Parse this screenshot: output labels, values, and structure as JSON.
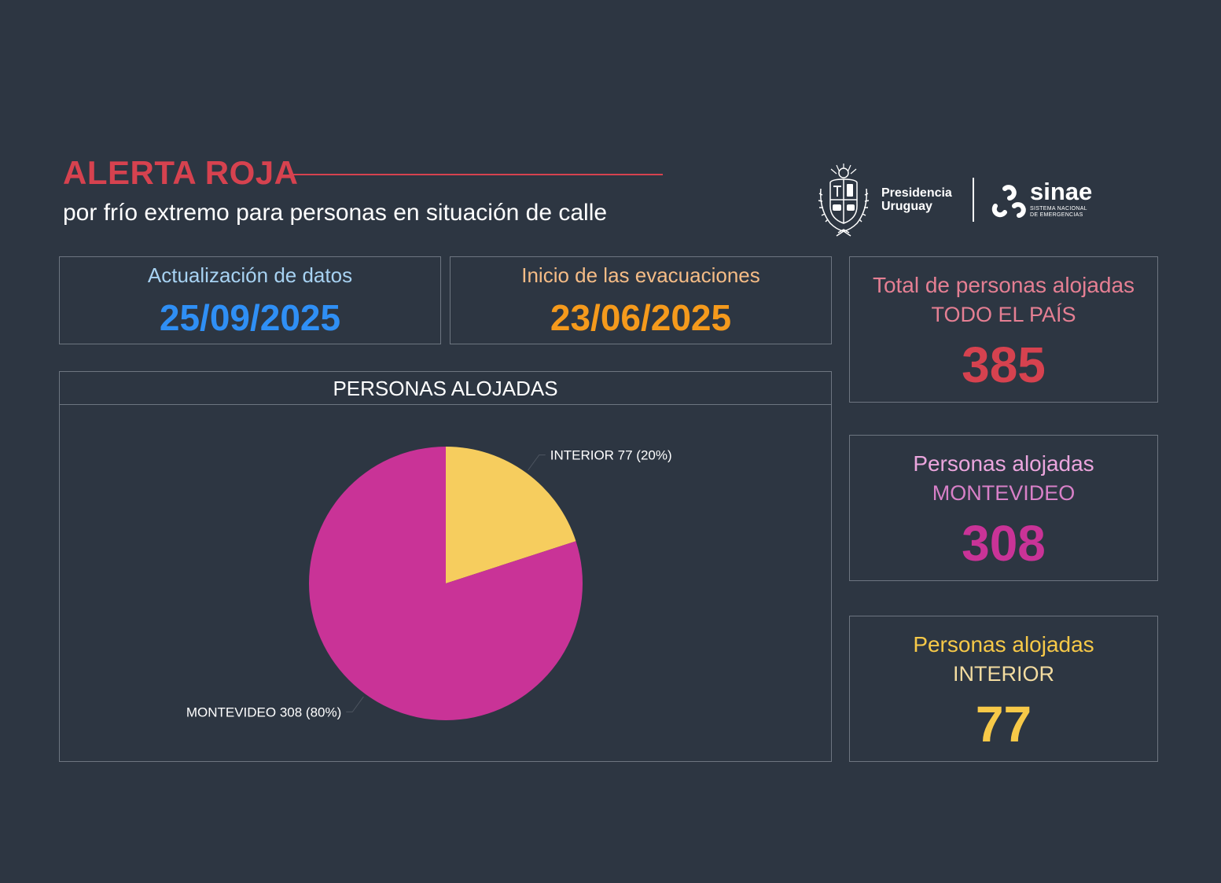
{
  "header": {
    "title": "ALERTA ROJA",
    "subtitle": "por frío extremo para personas en situación de calle"
  },
  "logos": {
    "presidencia_line1": "Presidencia",
    "presidencia_line2": "Uruguay",
    "sinae_word": "sinae",
    "sinae_sub_line1": "SISTEMA NACIONAL",
    "sinae_sub_line2": "DE EMERGENCIAS"
  },
  "dates": {
    "update_label": "Actualización de datos",
    "update_value": "25/09/2025",
    "start_label": "Inicio de las evacuaciones",
    "start_value": "23/06/2025"
  },
  "stats": {
    "total": {
      "label": "Total de personas alojadas",
      "sub": "TODO EL PAÍS",
      "value": "385"
    },
    "montevideo": {
      "label": "Personas alojadas",
      "sub": "MONTEVIDEO",
      "value": "308"
    },
    "interior": {
      "label": "Personas alojadas",
      "sub": "INTERIOR",
      "value": "77"
    }
  },
  "colors": {
    "background": "#2d3642",
    "alert_red": "#d6424f",
    "update_label": "#a7d2f2",
    "update_value": "#2f8ff5",
    "start_label": "#f5bc86",
    "start_value": "#f59a1c",
    "total_label": "#e57f93",
    "total_value": "#d6424f",
    "mvd_label": "#eba5dd",
    "mvd_sub": "#d880c8",
    "mvd_value": "#c93397",
    "int_label": "#f7c948",
    "int_sub": "#f3dca0",
    "int_value": "#f7c948",
    "pie_interior": "#f6cd5e",
    "pie_montevideo": "#c93397"
  },
  "chart_data": {
    "type": "pie",
    "title": "PERSONAS ALOJADAS",
    "slices": [
      {
        "name": "INTERIOR",
        "value": 77,
        "percent": 20,
        "label": "INTERIOR 77 (20%)",
        "color": "#f6cd5e"
      },
      {
        "name": "MONTEVIDEO",
        "value": 308,
        "percent": 80,
        "label": "MONTEVIDEO 308 (80%)",
        "color": "#c93397"
      }
    ]
  }
}
